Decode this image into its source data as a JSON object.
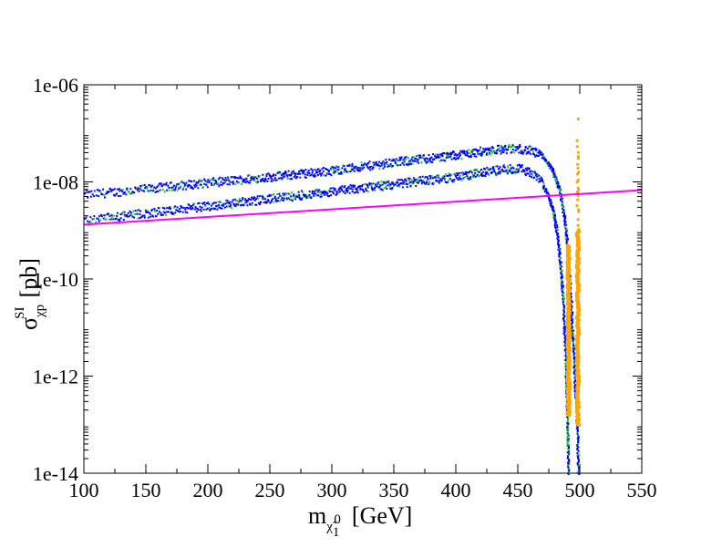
{
  "chart_data": {
    "type": "scatter",
    "title": "",
    "xlabel": {
      "main": "m",
      "subscript": "χ̃",
      "subsub": "1",
      "supsub": "0",
      "unit": "[GeV]"
    },
    "ylabel": {
      "main": "σ",
      "subscript": "χp",
      "superscript": "SI",
      "unit": "[pb]"
    },
    "xlim": [
      100,
      550
    ],
    "ylim_log10": [
      -14,
      -6
    ],
    "y_scale": "log",
    "grid": false,
    "x_ticks": [
      100,
      150,
      200,
      250,
      300,
      350,
      400,
      450,
      500,
      550
    ],
    "x_tick_labels": [
      "100",
      "150",
      "200",
      "250",
      "300",
      "350",
      "400",
      "450",
      "500",
      "550"
    ],
    "y_ticks_log10": [
      -14,
      -12,
      -10,
      -8,
      -6
    ],
    "y_tick_labels": [
      "1e-14",
      "1e-12",
      "1e-10",
      "1e-08",
      "1e-06"
    ],
    "series": [
      {
        "name": "upper band",
        "color": "#0000ff",
        "secondary_color": "#22cc22",
        "x": [
          100,
          150,
          200,
          250,
          300,
          350,
          400,
          430,
          450,
          460,
          470,
          478,
          484,
          488,
          490,
          492,
          494,
          496,
          498,
          499
        ],
        "log10_y": [
          -8.27,
          -8.15,
          -8.02,
          -7.9,
          -7.77,
          -7.6,
          -7.45,
          -7.34,
          -7.32,
          -7.36,
          -7.48,
          -7.75,
          -8.2,
          -8.8,
          -9.3,
          -10.0,
          -11.0,
          -12.0,
          -13.0,
          -14.0
        ]
      },
      {
        "name": "lower band",
        "color": "#0000ff",
        "secondary_color": "#22cc22",
        "x": [
          100,
          150,
          200,
          250,
          300,
          350,
          400,
          430,
          450,
          460,
          468,
          474,
          479,
          482,
          485,
          487,
          488.5,
          489.5,
          490.5,
          491
        ],
        "log10_y": [
          -8.8,
          -8.65,
          -8.5,
          -8.35,
          -8.2,
          -8.05,
          -7.9,
          -7.77,
          -7.72,
          -7.8,
          -7.98,
          -8.25,
          -8.65,
          -9.1,
          -9.8,
          -10.6,
          -11.5,
          -12.3,
          -13.2,
          -14.0
        ]
      },
      {
        "name": "orange points",
        "color": "#ffa500",
        "x": [
          491,
          498.5
        ],
        "log10_y_range": [
          [
            -12.8,
            -9.3
          ],
          [
            -13.0,
            -6.5
          ]
        ]
      }
    ],
    "limit_line": {
      "name": "exclusion limit",
      "color": "#ff00ff",
      "x": [
        100,
        550
      ],
      "log10_y": [
        -8.88,
        -8.17
      ]
    }
  }
}
